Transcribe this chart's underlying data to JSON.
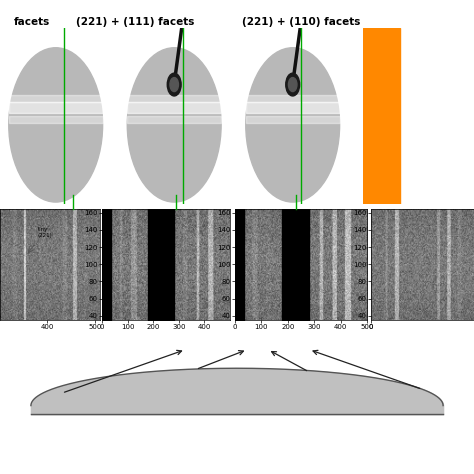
{
  "title_labels": [
    "(221) + (111) facets",
    "(221) + (110) facets"
  ],
  "left_partial_label": "facets",
  "background_color": "#ffffff",
  "fig_width": 4.74,
  "fig_height": 4.74,
  "green_line_color": "#00aa00",
  "orange_patch_color": "#ff8800",
  "tiny_221_text": "tiny\n(221)",
  "arrow_color": "#222222",
  "tick_label_fontsize": 5,
  "title_fontsize": 7.5,
  "annotation_fontsize": 5.5
}
